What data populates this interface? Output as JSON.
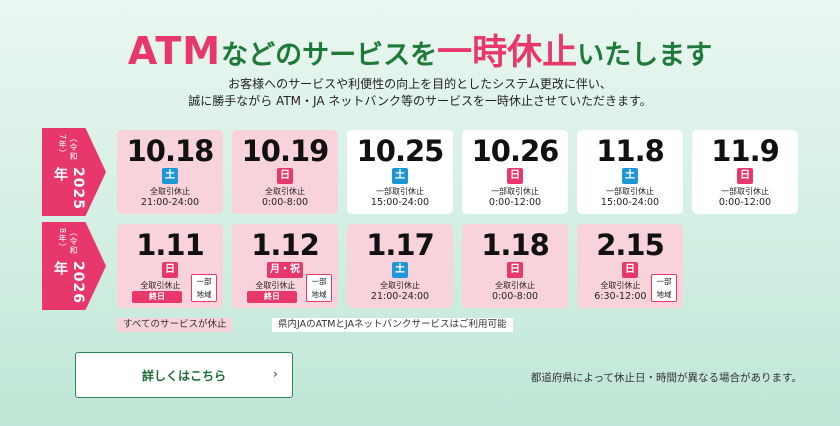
{
  "headline": {
    "part1": "ATM",
    "part2": "などのサービスを",
    "part3": "一時休止",
    "part4": "いたします"
  },
  "subtext": {
    "line1": "お客様へのサービスや利便性の向上を目的としたシステム更改に伴い、",
    "line2": "誠に勝手ながら ATM・JA ネットバンク等のサービスを一時休止させていただきます。"
  },
  "years": [
    {
      "year": "2025年",
      "era": "（令和7年）"
    },
    {
      "year": "2026年",
      "era": "（令和8年）"
    }
  ],
  "row1": [
    {
      "date": "10.18",
      "day": "土",
      "type": "全取引休止",
      "time": "21:00-24:00"
    },
    {
      "date": "10.19",
      "day": "日",
      "type": "全取引休止",
      "time": "0:00-8:00"
    },
    {
      "date": "10.25",
      "day": "土",
      "type": "一部取引休止",
      "time": "15:00-24:00"
    },
    {
      "date": "10.26",
      "day": "日",
      "type": "一部取引休止",
      "time": "0:00-12:00"
    },
    {
      "date": "11.8",
      "day": "土",
      "type": "一部取引休止",
      "time": "15:00-24:00"
    },
    {
      "date": "11.9",
      "day": "日",
      "type": "一部取引休止",
      "time": "0:00-12:00"
    }
  ],
  "row2": [
    {
      "date": "1.11",
      "day": "日",
      "type": "全取引休止",
      "allday": "終日",
      "region": "一部 地域"
    },
    {
      "date": "1.12",
      "day": "月・祝",
      "type": "全取引休止",
      "allday": "終日",
      "region": "一部 地域"
    },
    {
      "date": "1.17",
      "day": "土",
      "type": "全取引休止",
      "time": "21:00-24:00"
    },
    {
      "date": "1.18",
      "day": "日",
      "type": "全取引休止",
      "time": "0:00-8:00"
    },
    {
      "date": "2.15",
      "day": "日",
      "type": "全取引休止",
      "time": "6:30-12:00",
      "region": "一部 地域"
    }
  ],
  "legend": {
    "pink": "すべてのサービスが休止",
    "white": "県内JAのATMとJAネットバンクサービスはご利用可能"
  },
  "button": {
    "label": "詳しくはこちら",
    "chevron": "›"
  },
  "note": "都道府県によって休止日・時間が異なる場合があります。",
  "colors": {
    "accent": "#e8386b",
    "green": "#1f7a3a",
    "saturday": "#1f97d4",
    "pink_card": "#f9d3dc"
  }
}
